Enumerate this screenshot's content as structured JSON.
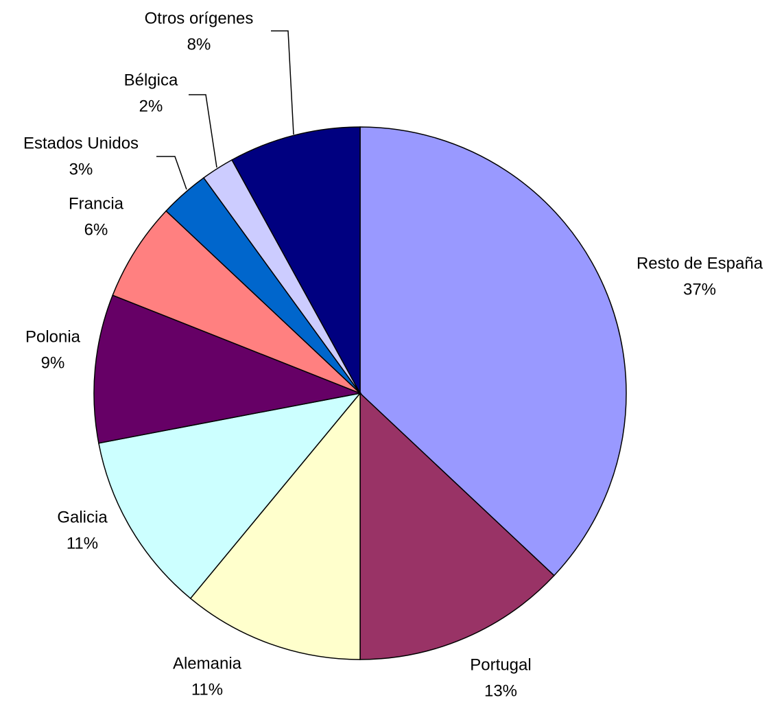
{
  "chart_data": {
    "type": "pie",
    "categories": [
      "Resto de España",
      "Portugal",
      "Alemania",
      "Galicia",
      "Polonia",
      "Francia",
      "Estados Unidos",
      "Bélgica",
      "Otros orígenes"
    ],
    "values": [
      37,
      13,
      11,
      11,
      9,
      6,
      3,
      2,
      8
    ],
    "value_labels": [
      "37%",
      "13%",
      "11%",
      "11%",
      "9%",
      "6%",
      "3%",
      "2%",
      "8%"
    ],
    "colors": [
      "#9999ff",
      "#993366",
      "#ffffcc",
      "#ccffff",
      "#660066",
      "#ff8080",
      "#0066cc",
      "#ccccff",
      "#000080"
    ]
  }
}
